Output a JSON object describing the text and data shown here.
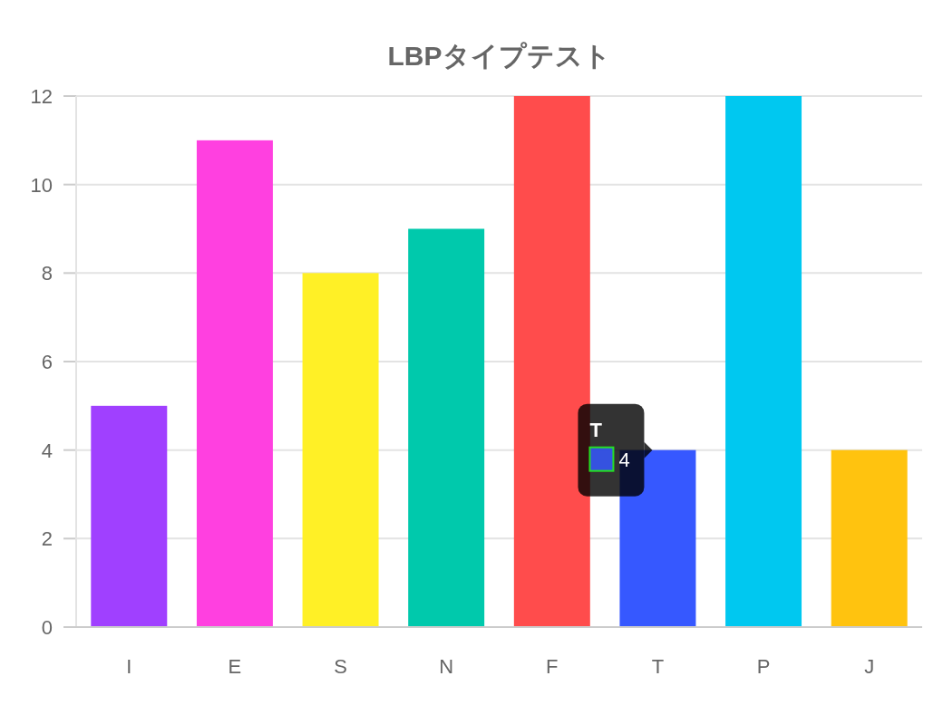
{
  "chart_data": {
    "type": "bar",
    "title": "LBPタイプテスト",
    "categories": [
      "I",
      "E",
      "S",
      "N",
      "F",
      "T",
      "P",
      "J"
    ],
    "values": [
      5,
      11,
      8,
      9,
      12,
      4,
      12,
      4
    ],
    "colors": [
      "#a040ff",
      "#ff40e0",
      "#fff026",
      "#00c9ac",
      "#ff4c4c",
      "#3658ff",
      "#00c8f0",
      "#ffc30f"
    ],
    "ylim": [
      0,
      12
    ],
    "yticks": [
      0,
      2,
      4,
      6,
      8,
      10,
      12
    ],
    "grid": "y",
    "annotations": [
      {
        "text": "T",
        "x": "T",
        "y": 4
      },
      {
        "text": "4",
        "x": "T",
        "y": 4
      }
    ]
  }
}
